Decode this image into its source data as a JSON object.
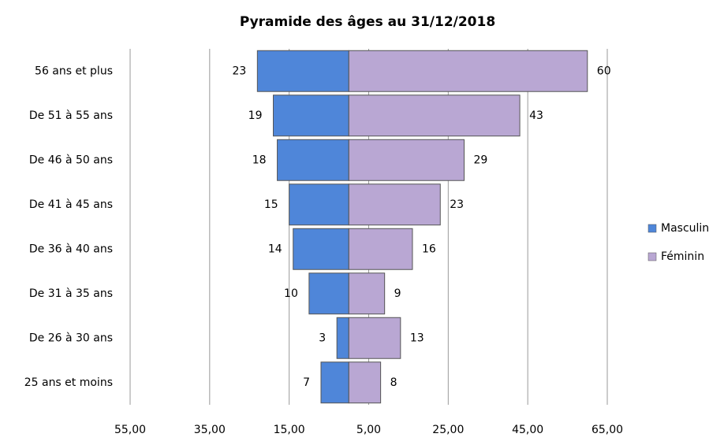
{
  "chart_data": {
    "type": "pyramid",
    "title": "Pyramide des âges au 31/12/2018",
    "categories": [
      "56 ans et plus",
      "De 51 à 55 ans",
      "De 46 à 50 ans",
      "De 41 à 45 ans",
      "De 36 à 40 ans",
      "De 31 à 35 ans",
      "De 26 à 30 ans",
      "25 ans et moins"
    ],
    "series": [
      {
        "name": "Masculin",
        "color": "#4f86d9",
        "values": [
          -23,
          -19,
          -18,
          -15,
          -14,
          -10,
          -3,
          -7
        ],
        "value_labels": [
          "23",
          "19",
          "18",
          "15",
          "14",
          "10",
          "3",
          "7"
        ]
      },
      {
        "name": "Féminin",
        "color": "#b9a7d3",
        "values": [
          60,
          43,
          29,
          23,
          16,
          9,
          13,
          8
        ]
      }
    ],
    "xlim": [
      -55,
      65
    ],
    "xticks": [
      {
        "value": -55,
        "label": "55,00"
      },
      {
        "value": -35,
        "label": "35,00"
      },
      {
        "value": -15,
        "label": "15,00"
      },
      {
        "value": 5,
        "label": "5,00"
      },
      {
        "value": 25,
        "label": "25,00"
      },
      {
        "value": 45,
        "label": "45,00"
      },
      {
        "value": 65,
        "label": "65,00"
      }
    ],
    "grid": true,
    "legend": "right"
  }
}
